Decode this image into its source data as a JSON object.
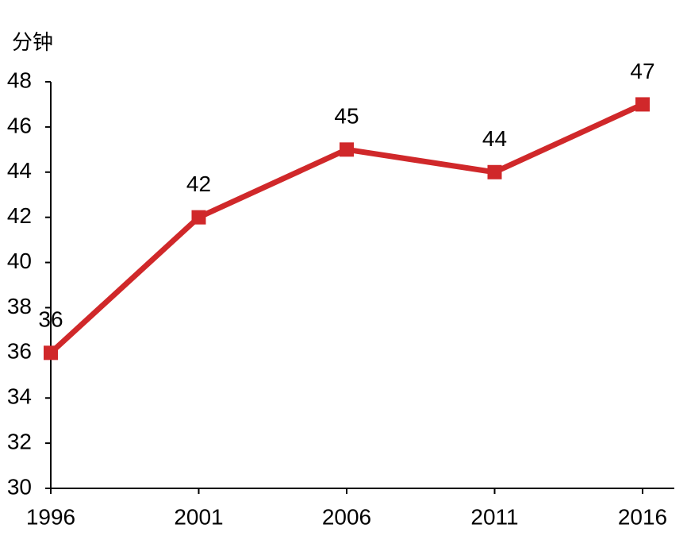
{
  "chart_data": {
    "type": "line",
    "y_label": "分钟",
    "categories": [
      "1996",
      "2001",
      "2006",
      "2011",
      "2016"
    ],
    "series": [
      {
        "name": "分钟",
        "color": "#d0282a",
        "values": [
          36,
          42,
          45,
          44,
          47
        ]
      }
    ],
    "ylim": [
      30,
      48
    ],
    "yticks": [
      30,
      32,
      34,
      36,
      38,
      40,
      42,
      44,
      46,
      48
    ],
    "grid": false
  }
}
